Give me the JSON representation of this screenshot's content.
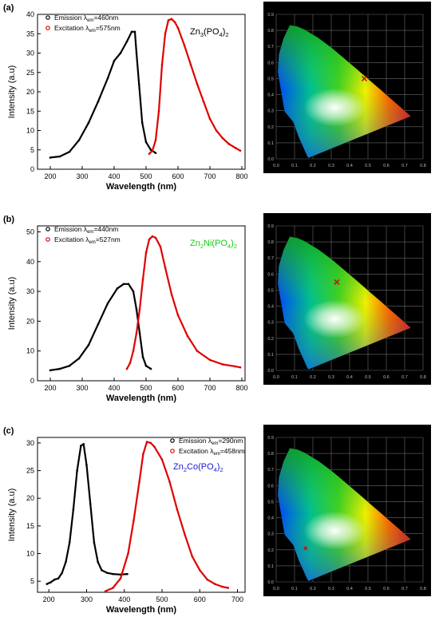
{
  "panels": [
    {
      "label": "(a)",
      "compound": {
        "parts": [
          "Zn",
          "3",
          "(PO",
          "4",
          ")",
          "2"
        ],
        "color": "#000000"
      },
      "chart_data": {
        "type": "line",
        "xlabel": "Wavelength (nm)",
        "ylabel": "Intensity (a.u)",
        "xlim": [
          160,
          810
        ],
        "ylim": [
          0,
          40
        ],
        "xticks": [
          200,
          300,
          400,
          500,
          600,
          700,
          800
        ],
        "yticks": [
          0,
          5,
          10,
          15,
          20,
          25,
          30,
          35,
          40
        ],
        "grid": false,
        "legend": "top-left",
        "series": [
          {
            "name": "Emission λem=460nm",
            "legend": {
              "pre": "Emission λ",
              "sub": "em",
              "post": "=460nm"
            },
            "color": "#000000",
            "x": [
              200,
              230,
              260,
              290,
              320,
              350,
              380,
              400,
              420,
              440,
              455,
              465,
              470,
              478,
              488,
              500,
              515,
              530
            ],
            "y": [
              3,
              3.3,
              4.5,
              7.5,
              12,
              17.5,
              23.5,
              28,
              30,
              33,
              35.5,
              35.5,
              30,
              22,
              12,
              7,
              5,
              4.2
            ]
          },
          {
            "name": "Excitation λem=575nm",
            "legend": {
              "pre": "Excitation λ",
              "sub": "em",
              "post": "=575nm"
            },
            "color": "#e00000",
            "x": [
              510,
              520,
              530,
              540,
              550,
              560,
              570,
              580,
              590,
              600,
              620,
              640,
              660,
              680,
              700,
              720,
              740,
              760,
              780,
              795
            ],
            "y": [
              4,
              4.8,
              7.5,
              15,
              27,
              35,
              38.5,
              38.8,
              38,
              36.5,
              32,
              27,
              22,
              17.5,
              13,
              10,
              8,
              6.5,
              5.5,
              4.8
            ]
          }
        ]
      },
      "cie": {
        "point": [
          0.48,
          0.5
        ],
        "marker": "x",
        "color": "#d01010"
      }
    },
    {
      "label": "(b)",
      "compound": {
        "parts": [
          "Zn",
          "2",
          "Ni(PO",
          "4",
          ")",
          "2"
        ],
        "color": "#10d010"
      },
      "chart_data": {
        "type": "line",
        "xlabel": "Wavelength (nm)",
        "ylabel": "Intensity (a.u)",
        "xlim": [
          160,
          810
        ],
        "ylim": [
          0,
          52
        ],
        "xticks": [
          200,
          300,
          400,
          500,
          600,
          700,
          800
        ],
        "yticks": [
          0,
          10,
          20,
          30,
          40,
          50
        ],
        "grid": false,
        "legend": "top-left",
        "series": [
          {
            "name": "Emission λem=440nm",
            "legend": {
              "pre": "Emission λ",
              "sub": "em",
              "post": "=440nm"
            },
            "color": "#000000",
            "x": [
              200,
              230,
              260,
              290,
              320,
              350,
              380,
              410,
              430,
              445,
              460,
              470,
              480,
              490,
              500,
              515
            ],
            "y": [
              3.5,
              4,
              5,
              7.5,
              12,
              19,
              26,
              31,
              32.5,
              32.5,
              30,
              24,
              16,
              8,
              5,
              4
            ]
          },
          {
            "name": "Excitation λem=527nm",
            "legend": {
              "pre": "Excitation λ",
              "sub": "em",
              "post": "=527nm"
            },
            "color": "#e00000",
            "x": [
              440,
              450,
              460,
              470,
              480,
              490,
              500,
              510,
              520,
              530,
              545,
              560,
              580,
              600,
              630,
              660,
              700,
              740,
              780,
              795
            ],
            "y": [
              4,
              6,
              10,
              16,
              24,
              34,
              43,
              47.5,
              48.5,
              48,
              45,
              38,
              29,
              22,
              15,
              10,
              7,
              5.5,
              4.8,
              4.5
            ]
          }
        ]
      },
      "cie": {
        "point": [
          0.33,
          0.55
        ],
        "marker": "x",
        "color": "#d01010"
      }
    },
    {
      "label": "(c)",
      "compound": {
        "parts": [
          "Zn",
          "2",
          "Co(PO",
          "4",
          ")",
          "2"
        ],
        "color": "#1a1acc"
      },
      "chart_data": {
        "type": "line",
        "xlabel": "Wavelength (nm)",
        "ylabel": "Intensity (a.u)",
        "xlim": [
          170,
          720
        ],
        "ylim": [
          3,
          31
        ],
        "xticks": [
          200,
          300,
          400,
          500,
          600,
          700
        ],
        "yticks": [
          5,
          10,
          15,
          20,
          25,
          30
        ],
        "grid": false,
        "legend": "top-right",
        "series": [
          {
            "name": "Emission λem=290nm",
            "legend": {
              "pre": "Emission λ",
              "sub": "em",
              "post": "=290nm"
            },
            "color": "#000000",
            "x": [
              195,
              205,
              215,
              225,
              235,
              245,
              255,
              265,
              275,
              285,
              292,
              300,
              310,
              320,
              330,
              340,
              355,
              370,
              390,
              408
            ],
            "y": [
              4.5,
              4.8,
              5.3,
              5.5,
              6.5,
              8.5,
              12,
              18,
              25,
              29.5,
              29.8,
              26,
              19,
              12,
              8.5,
              7,
              6.5,
              6.3,
              6.2,
              6.3
            ]
          },
          {
            "name": "Excitation λem=458nm",
            "legend": {
              "pre": "Excitation λ",
              "sub": "em",
              "post": "=458nm"
            },
            "color": "#e00000",
            "x": [
              350,
              370,
              390,
              410,
              425,
              440,
              450,
              460,
              470,
              480,
              500,
              520,
              540,
              560,
              580,
              600,
              620,
              640,
              660,
              675
            ],
            "y": [
              3.2,
              3.8,
              5.5,
              10,
              16,
              23,
              28,
              30.2,
              30,
              29.3,
              27,
              23,
              18,
              13.5,
              9.5,
              7,
              5.3,
              4.5,
              4,
              3.8
            ]
          }
        ]
      },
      "cie": {
        "point": [
          0.16,
          0.21
        ],
        "marker": "x",
        "color": "#d01010"
      }
    }
  ],
  "cie_axes": {
    "xticks": [
      "0.0",
      "0.1",
      "0.2",
      "0.3",
      "0.4",
      "0.5",
      "0.6",
      "0.7",
      "0.8"
    ],
    "yticks": [
      "0.0",
      "0.1",
      "0.2",
      "0.3",
      "0.4",
      "0.5",
      "0.6",
      "0.7",
      "0.8",
      "0.9"
    ]
  }
}
